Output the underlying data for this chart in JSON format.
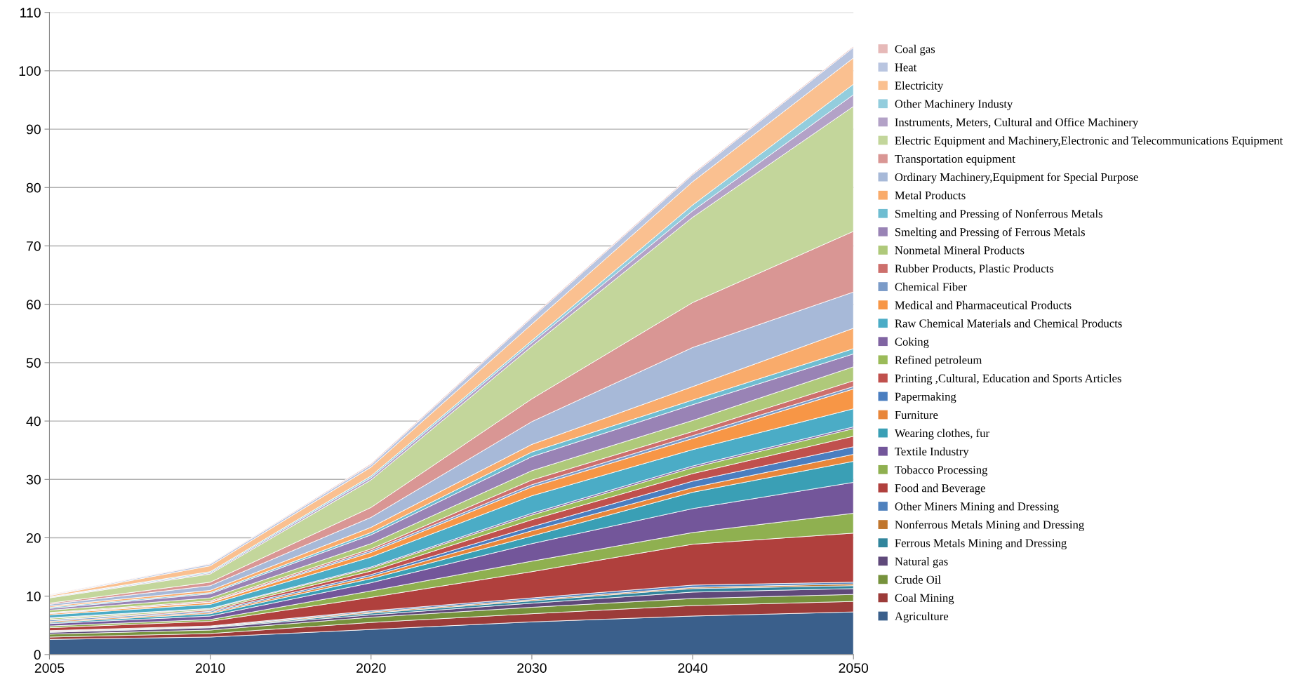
{
  "chart_data": {
    "type": "area",
    "stacked": true,
    "categories": [
      "2005",
      "2010",
      "2020",
      "2030",
      "2040",
      "2050"
    ],
    "ylim": [
      0,
      110
    ],
    "yticks": [
      0,
      10,
      20,
      30,
      40,
      50,
      60,
      70,
      80,
      90,
      100,
      110
    ],
    "grid": "y",
    "legend": "right",
    "series": [
      {
        "name": "Agriculture",
        "color": "#3a5f8b",
        "values": [
          2.6,
          3.0,
          4.3,
          5.6,
          6.6,
          7.3
        ]
      },
      {
        "name": "Coal Mining",
        "color": "#9c3b39",
        "values": [
          0.4,
          0.6,
          1.2,
          1.4,
          1.8,
          1.8
        ]
      },
      {
        "name": "Crude Oil",
        "color": "#76923c",
        "values": [
          0.5,
          0.6,
          0.9,
          1.1,
          1.2,
          1.2
        ]
      },
      {
        "name": "Natural gas",
        "color": "#5f497a",
        "values": [
          0.3,
          0.4,
          0.4,
          0.7,
          1.1,
          1.0
        ]
      },
      {
        "name": "Ferrous Metals Mining and Dressing",
        "color": "#31859c",
        "values": [
          0.1,
          0.1,
          0.3,
          0.4,
          0.6,
          0.5
        ]
      },
      {
        "name": "Nonferrous Metals Mining and Dressing",
        "color": "#c0762e",
        "values": [
          0.1,
          0.1,
          0.2,
          0.2,
          0.2,
          0.3
        ]
      },
      {
        "name": "Other Miners Mining and Dressing",
        "color": "#4f81bd",
        "values": [
          0.1,
          0.1,
          0.2,
          0.3,
          0.4,
          0.3
        ]
      },
      {
        "name": "Food and Beverage",
        "color": "#b0403d",
        "values": [
          0.5,
          0.8,
          2.3,
          4.5,
          7.0,
          8.4
        ]
      },
      {
        "name": "Tobacco Processing",
        "color": "#8fb050",
        "values": [
          0.3,
          0.3,
          1.1,
          1.8,
          2.0,
          3.4
        ]
      },
      {
        "name": "Textile Industry",
        "color": "#73569a",
        "values": [
          0.4,
          0.6,
          1.4,
          3.0,
          4.1,
          5.3
        ]
      },
      {
        "name": "Wearing clothes, fur",
        "color": "#3a9fb5",
        "values": [
          0.2,
          0.4,
          0.7,
          1.3,
          2.8,
          3.6
        ]
      },
      {
        "name": "Furniture",
        "color": "#e8863a",
        "values": [
          0.2,
          0.2,
          0.4,
          0.9,
          0.8,
          1.2
        ]
      },
      {
        "name": "Papermaking",
        "color": "#4a7ec0",
        "values": [
          0.2,
          0.2,
          0.3,
          0.7,
          1.1,
          1.3
        ]
      },
      {
        "name": "Printing ,Cultural, Education and Sports Articles",
        "color": "#c0504d",
        "values": [
          0.1,
          0.2,
          0.6,
          1.2,
          1.3,
          1.8
        ]
      },
      {
        "name": "Refined petroleum",
        "color": "#9bbb59",
        "values": [
          0.2,
          0.2,
          0.5,
          0.8,
          1.0,
          1.3
        ]
      },
      {
        "name": "Coking",
        "color": "#8064a2",
        "values": [
          0.1,
          0.1,
          0.2,
          0.3,
          0.3,
          0.3
        ]
      },
      {
        "name": "Raw Chemical Materials and Chemical Products",
        "color": "#4bacc6",
        "values": [
          0.5,
          0.7,
          1.7,
          3.0,
          2.8,
          3.1
        ]
      },
      {
        "name": "Medical and Pharmaceutical Products",
        "color": "#f79646",
        "values": [
          0.2,
          0.3,
          0.8,
          1.5,
          1.9,
          3.4
        ]
      },
      {
        "name": "Chemical Fiber",
        "color": "#7b9bc8",
        "values": [
          0.1,
          0.1,
          0.3,
          0.4,
          0.5,
          0.4
        ]
      },
      {
        "name": "Rubber Products, Plastic Products",
        "color": "#cd6f6c",
        "values": [
          0.1,
          0.2,
          0.3,
          0.8,
          0.7,
          1.0
        ]
      },
      {
        "name": "Nonmetal Mineral Products",
        "color": "#afc97a",
        "values": [
          0.4,
          0.5,
          0.9,
          1.6,
          1.9,
          2.4
        ]
      },
      {
        "name": "Smelting and Pressing of Ferrous Metals",
        "color": "#9983b5",
        "values": [
          0.3,
          0.7,
          1.5,
          2.4,
          2.7,
          2.2
        ]
      },
      {
        "name": "Smelting and Pressing of Nonferrous Metals",
        "color": "#6fbdd1",
        "values": [
          0.2,
          0.2,
          0.4,
          0.8,
          0.8,
          0.9
        ]
      },
      {
        "name": "Metal Products",
        "color": "#f9ab6b",
        "values": [
          0.2,
          0.4,
          0.9,
          1.3,
          2.3,
          3.5
        ]
      },
      {
        "name": "Ordinary Machinery,Equipment for Special Purpose",
        "color": "#a7b9d8",
        "values": [
          0.3,
          0.8,
          1.7,
          3.9,
          6.7,
          6.2
        ]
      },
      {
        "name": "Transportation equipment",
        "color": "#d99694",
        "values": [
          0.2,
          0.6,
          1.7,
          3.9,
          7.7,
          10.4
        ]
      },
      {
        "name": "Electric Equipment and Machinery,Electronic and Telecommunications Equipment",
        "color": "#c3d69b",
        "values": [
          0.9,
          1.4,
          4.7,
          9.0,
          14.6,
          21.4
        ]
      },
      {
        "name": "Instruments, Meters, Cultural and Office Machinery",
        "color": "#b3a2c7",
        "values": [
          0.1,
          0.2,
          0.4,
          0.6,
          1.1,
          2.0
        ]
      },
      {
        "name": "Other Machinery Industy",
        "color": "#93cddd",
        "values": [
          0.1,
          0.2,
          0.3,
          0.4,
          1.0,
          1.8
        ]
      },
      {
        "name": "Electricity",
        "color": "#fac090",
        "values": [
          0.2,
          1.0,
          1.5,
          2.8,
          4.0,
          4.5
        ]
      },
      {
        "name": "Heat",
        "color": "#b9c5e0",
        "values": [
          0.1,
          0.3,
          0.4,
          1.1,
          1.2,
          1.8
        ]
      },
      {
        "name": "Coal gas",
        "color": "#e6b9b8",
        "values": [
          0.1,
          0.1,
          0.2,
          0.2,
          0.2,
          0.2
        ]
      }
    ]
  }
}
